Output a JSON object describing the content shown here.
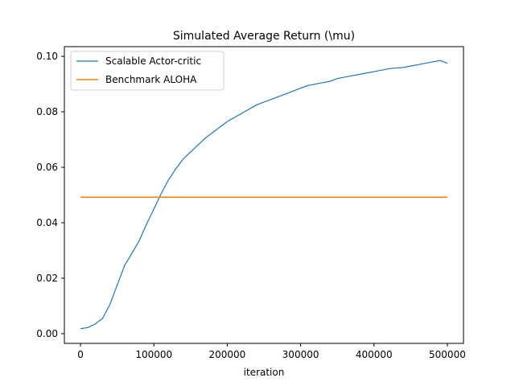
{
  "chart_data": {
    "type": "line",
    "title": "Simulated Average Return (\\mu)",
    "xlabel": "iteration",
    "ylabel": "",
    "xlim": [
      -22000,
      522000
    ],
    "ylim": [
      -0.0035,
      0.1035
    ],
    "x_ticks": [
      0,
      100000,
      200000,
      300000,
      400000,
      500000
    ],
    "x_tick_labels": [
      "0",
      "100000",
      "200000",
      "300000",
      "400000",
      "500000"
    ],
    "y_ticks": [
      0.0,
      0.02,
      0.04,
      0.06,
      0.08,
      0.1
    ],
    "y_tick_labels": [
      "0.00",
      "0.02",
      "0.04",
      "0.06",
      "0.08",
      "0.10"
    ],
    "grid": false,
    "legend_position": "upper-left",
    "series": [
      {
        "name": "Scalable Actor-critic",
        "color": "#1f77b4",
        "x": [
          0,
          10000,
          20000,
          30000,
          40000,
          50000,
          60000,
          70000,
          80000,
          90000,
          100000,
          110000,
          120000,
          130000,
          140000,
          150000,
          160000,
          170000,
          180000,
          190000,
          200000,
          210000,
          220000,
          230000,
          240000,
          250000,
          260000,
          270000,
          280000,
          290000,
          300000,
          310000,
          320000,
          330000,
          340000,
          350000,
          360000,
          370000,
          380000,
          390000,
          400000,
          410000,
          420000,
          430000,
          440000,
          450000,
          460000,
          470000,
          480000,
          490000,
          500000
        ],
        "y": [
          0.0018,
          0.0022,
          0.0035,
          0.0055,
          0.0105,
          0.0175,
          0.0245,
          0.029,
          0.0335,
          0.0395,
          0.045,
          0.0505,
          0.0555,
          0.0595,
          0.063,
          0.0655,
          0.068,
          0.0705,
          0.0725,
          0.0745,
          0.0765,
          0.078,
          0.0795,
          0.081,
          0.0825,
          0.0835,
          0.0845,
          0.0855,
          0.0865,
          0.0875,
          0.0885,
          0.0895,
          0.09,
          0.0905,
          0.091,
          0.092,
          0.0925,
          0.093,
          0.0935,
          0.094,
          0.0945,
          0.095,
          0.0955,
          0.0958,
          0.096,
          0.0965,
          0.097,
          0.0975,
          0.098,
          0.0985,
          0.0975
        ]
      },
      {
        "name": "Benchmark ALOHA",
        "color": "#ff7f0e",
        "x": [
          0,
          500000
        ],
        "y": [
          0.0492,
          0.0492
        ]
      }
    ]
  }
}
